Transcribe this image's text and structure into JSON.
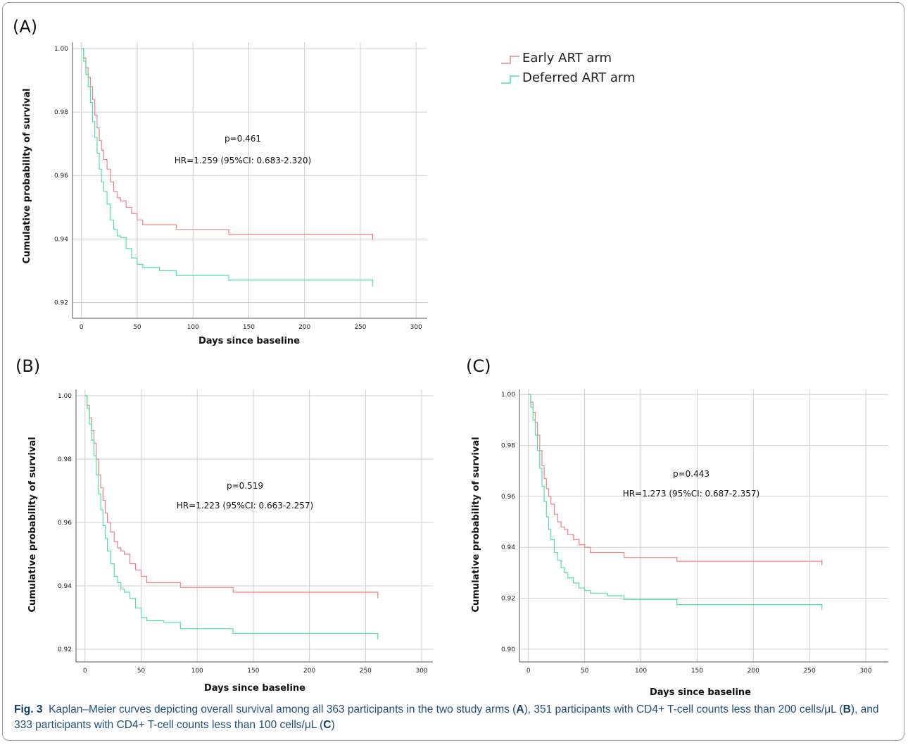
{
  "legend": {
    "items": [
      {
        "label": "Early ART arm",
        "color": "#f08080"
      },
      {
        "label": "Deferred ART arm",
        "color": "#4fe0a6"
      }
    ]
  },
  "caption": {
    "fig": "Fig. 3",
    "t1": "Kaplan–Meier curves depicting overall survival among all 363 participants in the two study arms (",
    "l1": "A",
    "t2": "), 351 participants with CD4+ T-cell counts less than 200 cells/μL (",
    "l2": "B",
    "t3": "), and 333 participants with CD4+ T-cell counts less than 100 cells/μL (",
    "l3": "C",
    "t4": ")"
  },
  "chart_data": [
    {
      "type": "line",
      "panel": "(A)",
      "xlabel": "Days since baseline",
      "ylabel": "Cumulative probability of survival",
      "xlim": [
        -8,
        310
      ],
      "ylim": [
        0.915,
        1.002
      ],
      "xticks": [
        0,
        50,
        100,
        150,
        200,
        250,
        300
      ],
      "yticks": [
        0.92,
        0.94,
        0.96,
        0.98,
        1.0
      ],
      "ytick_labels": [
        "0.92",
        "0.94",
        "0.96",
        "0.98",
        "1.00"
      ],
      "grid": true,
      "annotations": [
        "p=0.461",
        "HR=1.259 (95%CI: 0.683-2.320)"
      ],
      "series": [
        {
          "name": "Early ART arm",
          "color": "#f08080",
          "x": [
            0,
            2,
            4,
            6,
            8,
            10,
            12,
            14,
            16,
            18,
            20,
            23,
            26,
            29,
            32,
            35,
            40,
            45,
            50,
            55,
            70,
            85,
            110,
            132,
            200,
            261
          ],
          "y": [
            1.0,
            0.997,
            0.994,
            0.991,
            0.988,
            0.984,
            0.979,
            0.975,
            0.971,
            0.968,
            0.965,
            0.962,
            0.958,
            0.955,
            0.953,
            0.952,
            0.95,
            0.948,
            0.946,
            0.9445,
            0.9445,
            0.943,
            0.943,
            0.9415,
            0.9415,
            0.9405
          ]
        },
        {
          "name": "Deferred ART arm",
          "color": "#4fe0a6",
          "x": [
            0,
            2,
            4,
            6,
            8,
            10,
            12,
            14,
            16,
            18,
            20,
            23,
            26,
            29,
            32,
            35,
            40,
            45,
            50,
            55,
            70,
            85,
            110,
            132,
            200,
            261
          ],
          "y": [
            1.0,
            0.996,
            0.992,
            0.988,
            0.983,
            0.977,
            0.972,
            0.967,
            0.962,
            0.958,
            0.955,
            0.951,
            0.946,
            0.943,
            0.941,
            0.9405,
            0.937,
            0.934,
            0.932,
            0.931,
            0.93,
            0.9285,
            0.9285,
            0.927,
            0.927,
            0.926
          ]
        }
      ]
    },
    {
      "type": "line",
      "panel": "(B)",
      "xlabel": "Days since baseline",
      "ylabel": "Cumulative probability of survival",
      "xlim": [
        -8,
        310
      ],
      "ylim": [
        0.916,
        1.002
      ],
      "xticks": [
        0,
        50,
        100,
        150,
        200,
        250,
        300
      ],
      "yticks": [
        0.92,
        0.94,
        0.96,
        0.98,
        1.0
      ],
      "ytick_labels": [
        "0.92",
        "0.94",
        "0.96",
        "0.98",
        "1.00"
      ],
      "grid": true,
      "annotations": [
        "p=0.519",
        "HR=1.223 (95%CI: 0.663-2.257)"
      ],
      "series": [
        {
          "name": "Early ART arm",
          "color": "#f08080",
          "x": [
            0,
            2,
            4,
            6,
            8,
            10,
            12,
            14,
            16,
            18,
            20,
            23,
            26,
            29,
            32,
            35,
            40,
            45,
            50,
            55,
            70,
            85,
            110,
            132,
            200,
            261
          ],
          "y": [
            1.0,
            0.997,
            0.993,
            0.989,
            0.985,
            0.98,
            0.975,
            0.971,
            0.967,
            0.963,
            0.96,
            0.957,
            0.954,
            0.952,
            0.951,
            0.95,
            0.947,
            0.945,
            0.943,
            0.941,
            0.941,
            0.9395,
            0.9395,
            0.938,
            0.938,
            0.937
          ]
        },
        {
          "name": "Deferred ART arm",
          "color": "#4fe0a6",
          "x": [
            0,
            2,
            4,
            6,
            8,
            10,
            12,
            14,
            16,
            18,
            20,
            23,
            26,
            29,
            32,
            35,
            40,
            45,
            50,
            55,
            70,
            85,
            110,
            132,
            200,
            261
          ],
          "y": [
            1.0,
            0.996,
            0.991,
            0.986,
            0.981,
            0.975,
            0.969,
            0.964,
            0.959,
            0.955,
            0.951,
            0.947,
            0.943,
            0.941,
            0.939,
            0.938,
            0.936,
            0.933,
            0.93,
            0.929,
            0.9285,
            0.9265,
            0.9265,
            0.925,
            0.925,
            0.924
          ]
        }
      ]
    },
    {
      "type": "line",
      "panel": "(C)",
      "xlabel": "Days since baseline",
      "ylabel": "Cumulative probability of survival",
      "xlim": [
        -8,
        320
      ],
      "ylim": [
        0.895,
        1.002
      ],
      "xticks": [
        0,
        50,
        100,
        150,
        200,
        250,
        300
      ],
      "yticks": [
        0.9,
        0.92,
        0.94,
        0.96,
        0.98,
        1.0
      ],
      "ytick_labels": [
        "0.90",
        "0.92",
        "0.94",
        "0.96",
        "0.98",
        "1.00"
      ],
      "grid": true,
      "annotations": [
        "p=0.443",
        "HR=1.273 (95%CI: 0.687-2.357)"
      ],
      "series": [
        {
          "name": "Early ART arm",
          "color": "#f08080",
          "x": [
            0,
            2,
            4,
            6,
            8,
            10,
            12,
            14,
            16,
            18,
            20,
            23,
            26,
            29,
            32,
            35,
            40,
            45,
            50,
            55,
            70,
            85,
            110,
            132,
            200,
            261
          ],
          "y": [
            1.0,
            0.997,
            0.993,
            0.989,
            0.984,
            0.978,
            0.972,
            0.967,
            0.963,
            0.96,
            0.957,
            0.953,
            0.95,
            0.948,
            0.947,
            0.945,
            0.943,
            0.941,
            0.94,
            0.938,
            0.938,
            0.936,
            0.936,
            0.9345,
            0.9345,
            0.934
          ]
        },
        {
          "name": "Deferred ART arm",
          "color": "#4fe0a6",
          "x": [
            0,
            2,
            4,
            6,
            8,
            10,
            12,
            14,
            16,
            18,
            20,
            23,
            26,
            29,
            32,
            35,
            40,
            45,
            50,
            55,
            70,
            85,
            110,
            132,
            200,
            261
          ],
          "y": [
            1.0,
            0.995,
            0.99,
            0.984,
            0.978,
            0.971,
            0.964,
            0.958,
            0.952,
            0.947,
            0.943,
            0.938,
            0.935,
            0.932,
            0.93,
            0.928,
            0.926,
            0.924,
            0.923,
            0.922,
            0.921,
            0.9195,
            0.9195,
            0.9175,
            0.9175,
            0.9165
          ]
        }
      ]
    }
  ]
}
